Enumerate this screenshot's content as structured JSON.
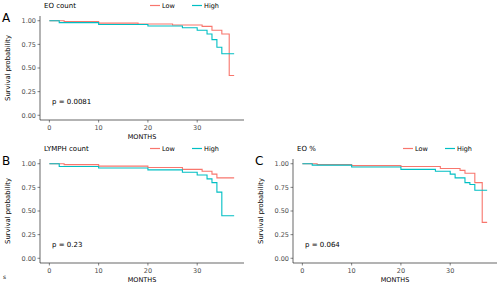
{
  "chart_data": [
    {
      "type": "line",
      "title": "EO count",
      "x_label": "MONTHS",
      "y_label": "Survival probability",
      "annotations": [
        "A",
        "p = 0.0081"
      ],
      "line_style": "step",
      "legend": "top",
      "xlim": [
        -1.9,
        39.5
      ],
      "ylim": [
        -0.05,
        1.05
      ],
      "xticks": [
        0,
        10,
        20,
        30
      ],
      "yticks": [
        {
          "value": 0,
          "label": "0.00"
        },
        {
          "value": 0.25,
          "label": "0.25"
        },
        {
          "value": 0.5,
          "label": "0.50"
        },
        {
          "value": 0.75,
          "label": "0.75"
        },
        {
          "value": 1,
          "label": "1.00"
        }
      ],
      "series": [
        {
          "name": "Low",
          "color": "#F8766D",
          "x": [
            0,
            3,
            10,
            18,
            25,
            31,
            33,
            35,
            36.5,
            37.5
          ],
          "values": [
            1.0,
            0.99,
            0.975,
            0.965,
            0.955,
            0.94,
            0.9,
            0.86,
            0.42,
            0.42
          ]
        },
        {
          "name": "High",
          "color": "#00BFC4",
          "x": [
            0,
            2,
            10,
            20,
            27,
            30,
            32,
            33,
            34,
            35,
            37.5
          ],
          "values": [
            1.0,
            0.98,
            0.96,
            0.945,
            0.925,
            0.9,
            0.86,
            0.8,
            0.72,
            0.65,
            0.65
          ]
        }
      ]
    },
    {
      "type": "line",
      "title": "LYMPH count",
      "x_label": "MONTHS",
      "y_label": "Survival probability",
      "annotations": [
        "B",
        "p = 0.23",
        "s"
      ],
      "line_style": "step",
      "legend": "top",
      "xlim": [
        -1.9,
        39.5
      ],
      "ylim": [
        -0.05,
        1.05
      ],
      "xticks": [
        0,
        10,
        20,
        30
      ],
      "yticks": [
        {
          "value": 0,
          "label": "0.00"
        },
        {
          "value": 0.25,
          "label": "0.25"
        },
        {
          "value": 0.5,
          "label": "0.50"
        },
        {
          "value": 0.75,
          "label": "0.75"
        },
        {
          "value": 1,
          "label": "1.00"
        }
      ],
      "series": [
        {
          "name": "Low",
          "color": "#F8766D",
          "x": [
            0,
            3,
            10,
            20,
            27,
            31,
            33,
            34,
            37.5
          ],
          "values": [
            1.0,
            0.99,
            0.975,
            0.96,
            0.94,
            0.92,
            0.89,
            0.85,
            0.85
          ]
        },
        {
          "name": "High",
          "color": "#00BFC4",
          "x": [
            0,
            2,
            10,
            20,
            27,
            30,
            32,
            33,
            34,
            35,
            37.5
          ],
          "values": [
            1.0,
            0.97,
            0.955,
            0.935,
            0.91,
            0.88,
            0.84,
            0.8,
            0.7,
            0.45,
            0.45
          ]
        }
      ]
    },
    {
      "type": "line",
      "title": "EO %",
      "x_label": "MONTHS",
      "y_label": "Survival probability",
      "annotations": [
        "C",
        "p = 0.064"
      ],
      "line_style": "step",
      "legend": "top",
      "xlim": [
        -1.9,
        39.5
      ],
      "ylim": [
        -0.05,
        1.05
      ],
      "xticks": [
        0,
        10,
        20,
        30
      ],
      "yticks": [
        {
          "value": 0,
          "label": "0.00"
        },
        {
          "value": 0.25,
          "label": "0.25"
        },
        {
          "value": 0.5,
          "label": "0.50"
        },
        {
          "value": 0.75,
          "label": "0.75"
        },
        {
          "value": 1,
          "label": "1.00"
        }
      ],
      "series": [
        {
          "name": "Low",
          "color": "#F8766D",
          "x": [
            0,
            3,
            10,
            20,
            28,
            32,
            33,
            35,
            36.5,
            37.5
          ],
          "values": [
            1.0,
            0.99,
            0.98,
            0.97,
            0.95,
            0.93,
            0.9,
            0.8,
            0.38,
            0.38
          ]
        },
        {
          "name": "High",
          "color": "#00BFC4",
          "x": [
            0,
            2,
            10,
            20,
            27,
            30,
            31,
            33,
            34,
            35,
            37.5
          ],
          "values": [
            1.0,
            0.985,
            0.965,
            0.94,
            0.92,
            0.89,
            0.85,
            0.8,
            0.78,
            0.72,
            0.72
          ]
        }
      ]
    }
  ]
}
